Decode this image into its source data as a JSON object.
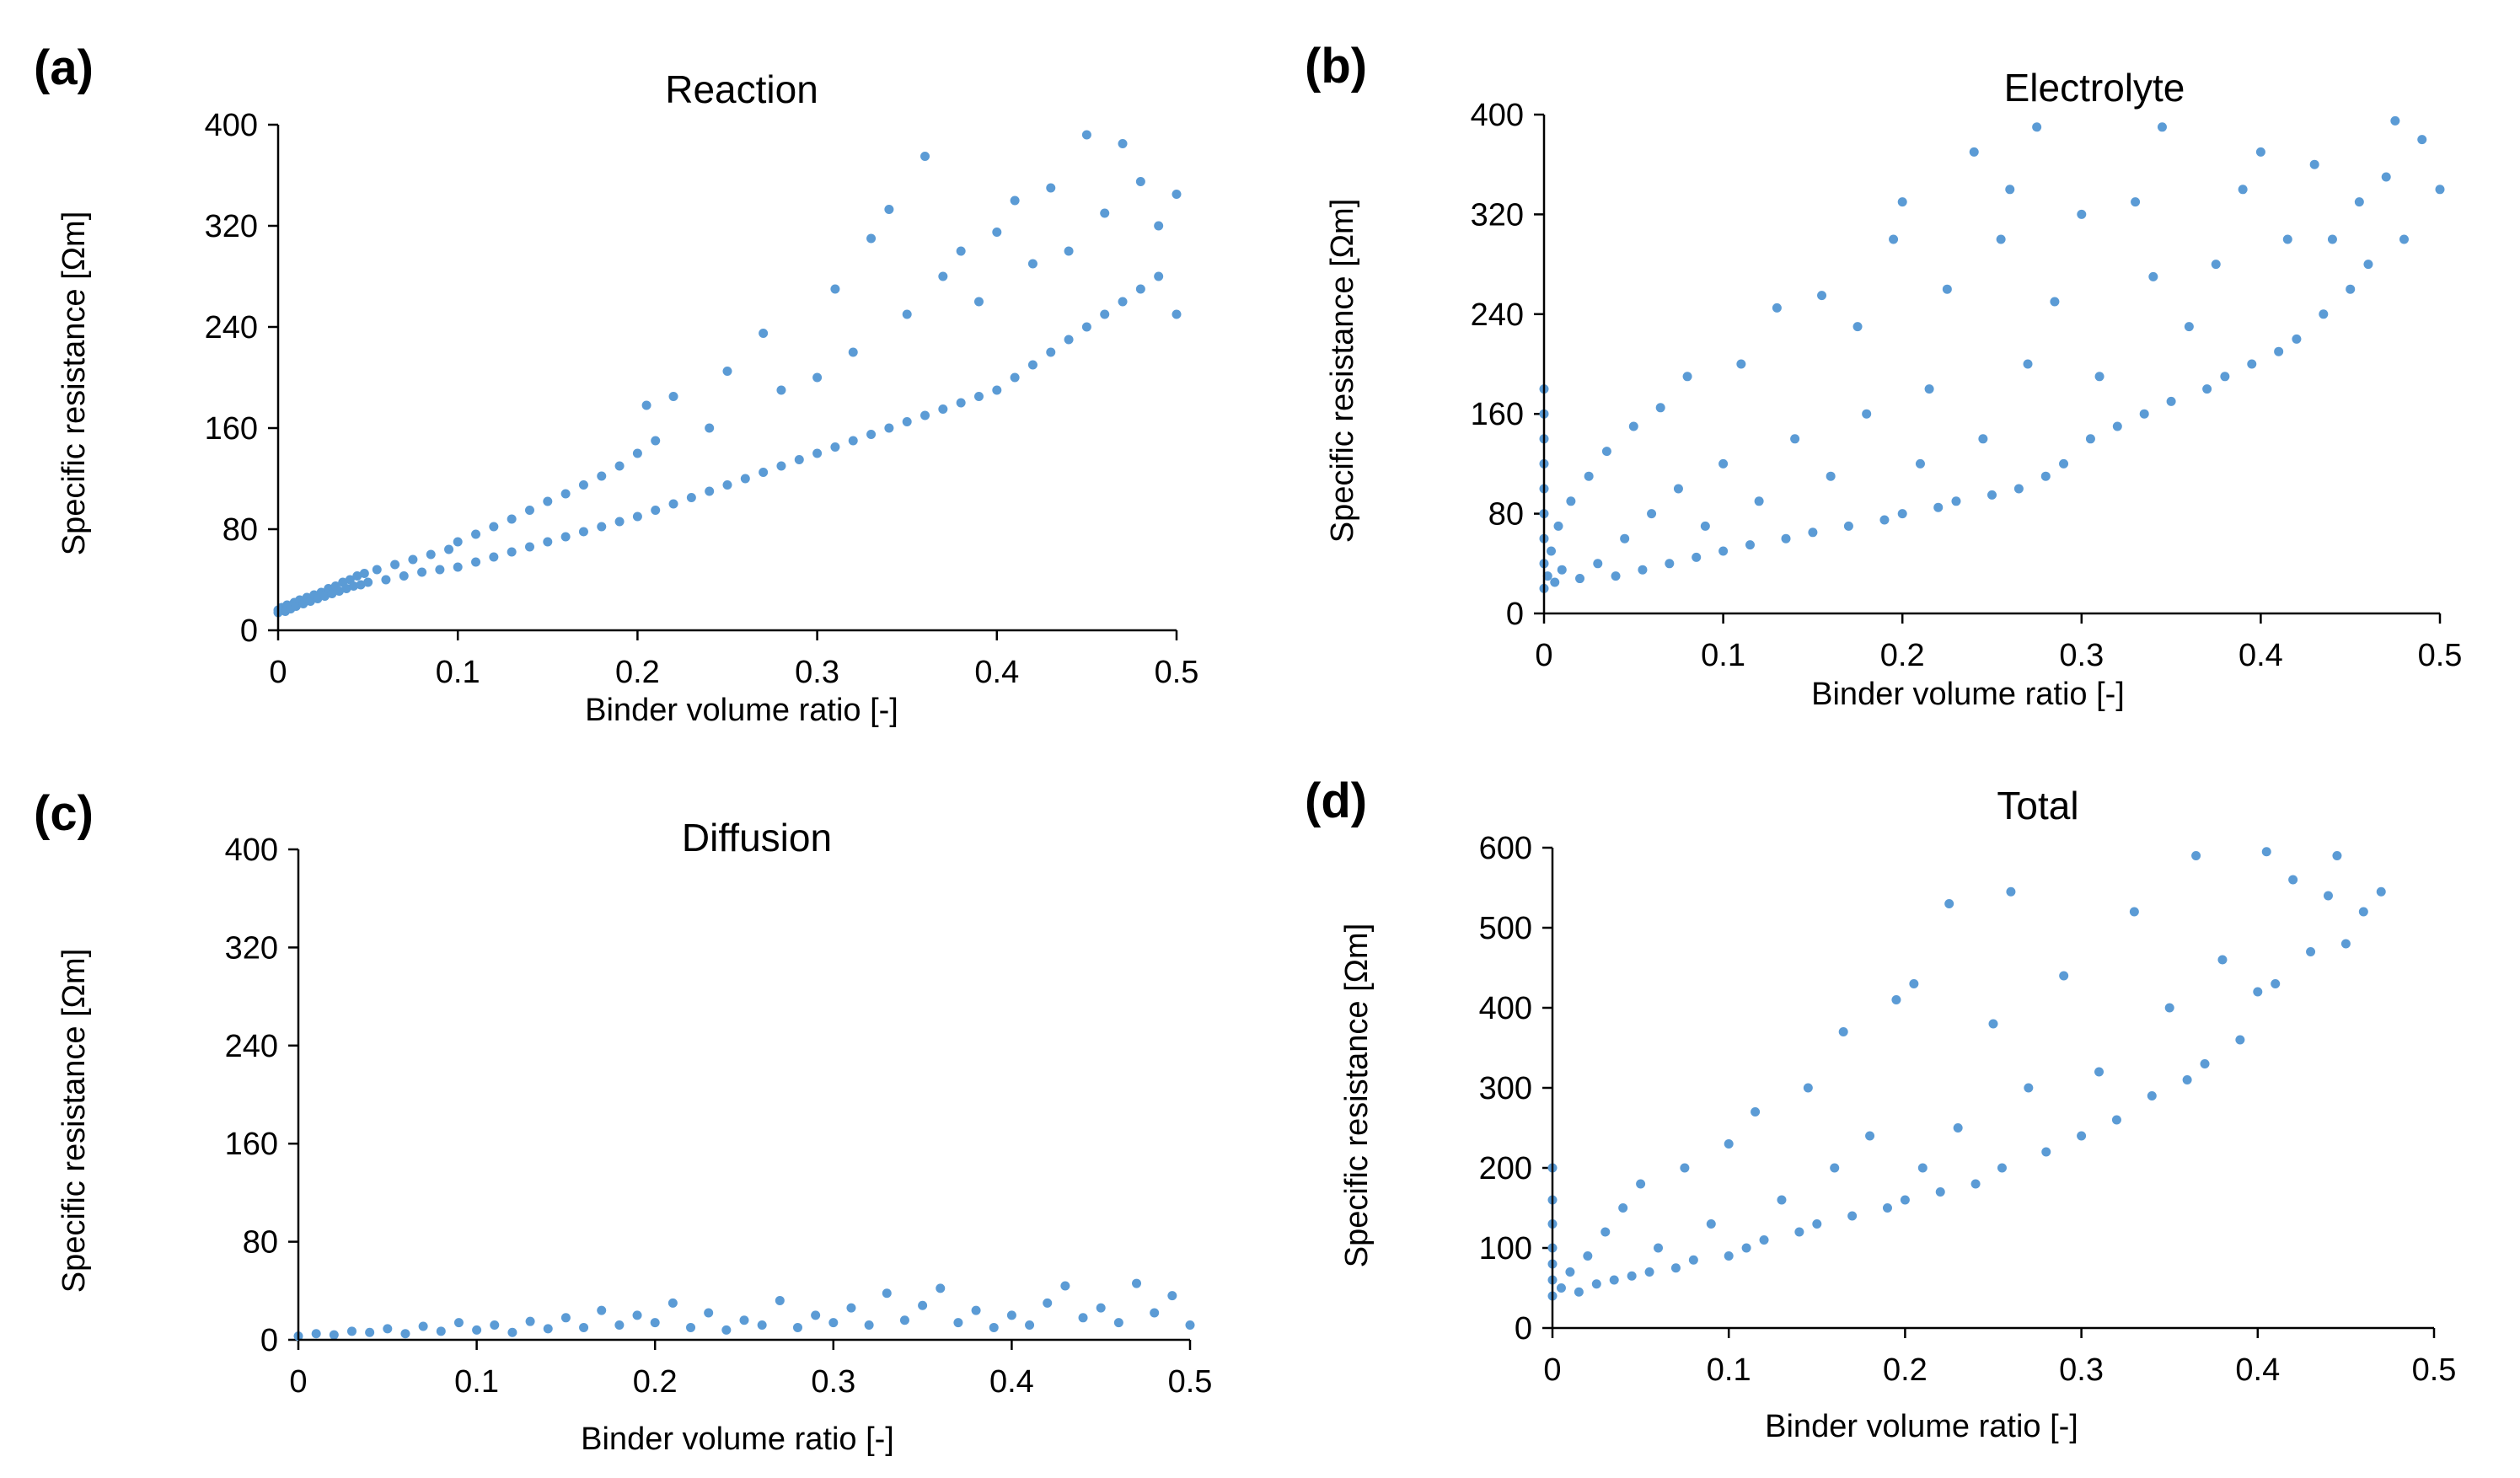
{
  "chart_data": [
    {
      "panel": "(a)",
      "type": "scatter",
      "title": "Reaction",
      "xlabel": "Binder volume ratio [-]",
      "ylabel": "Specific resistance [Ωm]",
      "xlim": [
        0,
        0.5
      ],
      "ylim": [
        0,
        400
      ],
      "xticks": [
        "0",
        "0.1",
        "0.2",
        "0.3",
        "0.4",
        "0.5"
      ],
      "yticks": [
        "0",
        "80",
        "160",
        "240",
        "320",
        "400"
      ],
      "color": "#5b9bd5",
      "points": [
        [
          0.0,
          14
        ],
        [
          0.0,
          16
        ],
        [
          0.002,
          18
        ],
        [
          0.004,
          15
        ],
        [
          0.005,
          20
        ],
        [
          0.007,
          17
        ],
        [
          0.009,
          22
        ],
        [
          0.01,
          19
        ],
        [
          0.012,
          24
        ],
        [
          0.014,
          21
        ],
        [
          0.016,
          26
        ],
        [
          0.018,
          23
        ],
        [
          0.02,
          28
        ],
        [
          0.022,
          25
        ],
        [
          0.024,
          30
        ],
        [
          0.026,
          27
        ],
        [
          0.028,
          33
        ],
        [
          0.03,
          29
        ],
        [
          0.032,
          35
        ],
        [
          0.034,
          31
        ],
        [
          0.036,
          38
        ],
        [
          0.038,
          33
        ],
        [
          0.04,
          40
        ],
        [
          0.042,
          35
        ],
        [
          0.044,
          43
        ],
        [
          0.046,
          36
        ],
        [
          0.048,
          45
        ],
        [
          0.05,
          38
        ],
        [
          0.055,
          48
        ],
        [
          0.06,
          40
        ],
        [
          0.065,
          52
        ],
        [
          0.07,
          43
        ],
        [
          0.075,
          56
        ],
        [
          0.08,
          46
        ],
        [
          0.085,
          60
        ],
        [
          0.09,
          48
        ],
        [
          0.095,
          64
        ],
        [
          0.1,
          50
        ],
        [
          0.1,
          70
        ],
        [
          0.11,
          54
        ],
        [
          0.11,
          76
        ],
        [
          0.12,
          58
        ],
        [
          0.12,
          82
        ],
        [
          0.13,
          62
        ],
        [
          0.13,
          88
        ],
        [
          0.14,
          66
        ],
        [
          0.14,
          95
        ],
        [
          0.15,
          70
        ],
        [
          0.15,
          102
        ],
        [
          0.16,
          74
        ],
        [
          0.16,
          108
        ],
        [
          0.17,
          78
        ],
        [
          0.17,
          115
        ],
        [
          0.18,
          82
        ],
        [
          0.18,
          122
        ],
        [
          0.19,
          86
        ],
        [
          0.19,
          130
        ],
        [
          0.2,
          90
        ],
        [
          0.2,
          140
        ],
        [
          0.205,
          178
        ],
        [
          0.21,
          95
        ],
        [
          0.21,
          150
        ],
        [
          0.22,
          100
        ],
        [
          0.22,
          185
        ],
        [
          0.23,
          105
        ],
        [
          0.24,
          110
        ],
        [
          0.24,
          160
        ],
        [
          0.25,
          115
        ],
        [
          0.25,
          205
        ],
        [
          0.26,
          120
        ],
        [
          0.27,
          125
        ],
        [
          0.27,
          235
        ],
        [
          0.28,
          130
        ],
        [
          0.28,
          190
        ],
        [
          0.29,
          135
        ],
        [
          0.3,
          140
        ],
        [
          0.3,
          200
        ],
        [
          0.31,
          145
        ],
        [
          0.31,
          270
        ],
        [
          0.32,
          150
        ],
        [
          0.32,
          220
        ],
        [
          0.33,
          155
        ],
        [
          0.33,
          310
        ],
        [
          0.34,
          160
        ],
        [
          0.34,
          333
        ],
        [
          0.35,
          165
        ],
        [
          0.35,
          250
        ],
        [
          0.36,
          170
        ],
        [
          0.36,
          375
        ],
        [
          0.37,
          175
        ],
        [
          0.37,
          280
        ],
        [
          0.38,
          180
        ],
        [
          0.38,
          300
        ],
        [
          0.39,
          185
        ],
        [
          0.39,
          260
        ],
        [
          0.4,
          190
        ],
        [
          0.4,
          315
        ],
        [
          0.41,
          200
        ],
        [
          0.41,
          340
        ],
        [
          0.42,
          210
        ],
        [
          0.42,
          290
        ],
        [
          0.43,
          220
        ],
        [
          0.43,
          350
        ],
        [
          0.44,
          230
        ],
        [
          0.44,
          300
        ],
        [
          0.45,
          240
        ],
        [
          0.45,
          392
        ],
        [
          0.46,
          250
        ],
        [
          0.46,
          330
        ],
        [
          0.47,
          260
        ],
        [
          0.47,
          385
        ],
        [
          0.48,
          270
        ],
        [
          0.48,
          355
        ],
        [
          0.49,
          280
        ],
        [
          0.49,
          320
        ],
        [
          0.5,
          250
        ],
        [
          0.5,
          345
        ]
      ]
    },
    {
      "panel": "(b)",
      "type": "scatter",
      "title": "Electrolyte",
      "xlabel": "Binder volume ratio [-]",
      "ylabel": "Specific resistance [Ωm]",
      "xlim": [
        0,
        0.5
      ],
      "ylim": [
        0,
        400
      ],
      "xticks": [
        "0",
        "0.1",
        "0.2",
        "0.3",
        "0.4",
        "0.5"
      ],
      "yticks": [
        "0",
        "80",
        "160",
        "240",
        "320",
        "400"
      ],
      "color": "#5b9bd5",
      "points": [
        [
          0.0,
          20
        ],
        [
          0.0,
          40
        ],
        [
          0.0,
          60
        ],
        [
          0.0,
          80
        ],
        [
          0.0,
          100
        ],
        [
          0.0,
          120
        ],
        [
          0.0,
          140
        ],
        [
          0.0,
          160
        ],
        [
          0.0,
          180
        ],
        [
          0.002,
          30
        ],
        [
          0.004,
          50
        ],
        [
          0.006,
          25
        ],
        [
          0.008,
          70
        ],
        [
          0.01,
          35
        ],
        [
          0.015,
          90
        ],
        [
          0.02,
          28
        ],
        [
          0.025,
          110
        ],
        [
          0.03,
          40
        ],
        [
          0.035,
          130
        ],
        [
          0.04,
          30
        ],
        [
          0.045,
          60
        ],
        [
          0.05,
          150
        ],
        [
          0.055,
          35
        ],
        [
          0.06,
          80
        ],
        [
          0.065,
          165
        ],
        [
          0.07,
          40
        ],
        [
          0.075,
          100
        ],
        [
          0.08,
          190
        ],
        [
          0.085,
          45
        ],
        [
          0.09,
          70
        ],
        [
          0.1,
          50
        ],
        [
          0.1,
          120
        ],
        [
          0.11,
          200
        ],
        [
          0.115,
          55
        ],
        [
          0.12,
          90
        ],
        [
          0.13,
          245
        ],
        [
          0.135,
          60
        ],
        [
          0.14,
          140
        ],
        [
          0.15,
          65
        ],
        [
          0.155,
          255
        ],
        [
          0.16,
          110
        ],
        [
          0.17,
          70
        ],
        [
          0.175,
          230
        ],
        [
          0.18,
          160
        ],
        [
          0.19,
          75
        ],
        [
          0.195,
          300
        ],
        [
          0.2,
          80
        ],
        [
          0.2,
          330
        ],
        [
          0.21,
          120
        ],
        [
          0.215,
          180
        ],
        [
          0.22,
          85
        ],
        [
          0.225,
          260
        ],
        [
          0.23,
          90
        ],
        [
          0.24,
          370
        ],
        [
          0.245,
          140
        ],
        [
          0.25,
          95
        ],
        [
          0.255,
          300
        ],
        [
          0.26,
          340
        ],
        [
          0.265,
          100
        ],
        [
          0.27,
          200
        ],
        [
          0.275,
          390
        ],
        [
          0.28,
          110
        ],
        [
          0.285,
          250
        ],
        [
          0.29,
          120
        ],
        [
          0.3,
          320
        ],
        [
          0.305,
          140
        ],
        [
          0.31,
          190
        ],
        [
          0.32,
          150
        ],
        [
          0.33,
          330
        ],
        [
          0.335,
          160
        ],
        [
          0.34,
          270
        ],
        [
          0.345,
          390
        ],
        [
          0.35,
          170
        ],
        [
          0.36,
          230
        ],
        [
          0.37,
          180
        ],
        [
          0.375,
          280
        ],
        [
          0.38,
          190
        ],
        [
          0.39,
          340
        ],
        [
          0.395,
          200
        ],
        [
          0.4,
          370
        ],
        [
          0.41,
          210
        ],
        [
          0.415,
          300
        ],
        [
          0.42,
          220
        ],
        [
          0.43,
          360
        ],
        [
          0.435,
          240
        ],
        [
          0.44,
          300
        ],
        [
          0.45,
          260
        ],
        [
          0.455,
          330
        ],
        [
          0.46,
          280
        ],
        [
          0.47,
          350
        ],
        [
          0.475,
          395
        ],
        [
          0.48,
          300
        ],
        [
          0.49,
          380
        ],
        [
          0.5,
          340
        ]
      ]
    },
    {
      "panel": "(c)",
      "type": "scatter",
      "title": "Diffusion",
      "xlabel": "Binder volume ratio [-]",
      "ylabel": "Specific resistance [Ωm]",
      "xlim": [
        0,
        0.5
      ],
      "ylim": [
        0,
        400
      ],
      "xticks": [
        "0",
        "0.1",
        "0.2",
        "0.3",
        "0.4",
        "0.5"
      ],
      "yticks": [
        "0",
        "80",
        "160",
        "240",
        "320",
        "400"
      ],
      "color": "#5b9bd5",
      "points": [
        [
          0.0,
          3
        ],
        [
          0.01,
          5
        ],
        [
          0.02,
          4
        ],
        [
          0.03,
          7
        ],
        [
          0.04,
          6
        ],
        [
          0.05,
          9
        ],
        [
          0.06,
          5
        ],
        [
          0.07,
          11
        ],
        [
          0.08,
          7
        ],
        [
          0.09,
          14
        ],
        [
          0.1,
          8
        ],
        [
          0.11,
          12
        ],
        [
          0.12,
          6
        ],
        [
          0.13,
          15
        ],
        [
          0.14,
          9
        ],
        [
          0.15,
          18
        ],
        [
          0.16,
          10
        ],
        [
          0.17,
          24
        ],
        [
          0.18,
          12
        ],
        [
          0.19,
          20
        ],
        [
          0.2,
          14
        ],
        [
          0.21,
          30
        ],
        [
          0.22,
          10
        ],
        [
          0.23,
          22
        ],
        [
          0.24,
          8
        ],
        [
          0.25,
          16
        ],
        [
          0.26,
          12
        ],
        [
          0.27,
          32
        ],
        [
          0.28,
          10
        ],
        [
          0.29,
          20
        ],
        [
          0.3,
          14
        ],
        [
          0.31,
          26
        ],
        [
          0.32,
          12
        ],
        [
          0.33,
          38
        ],
        [
          0.34,
          16
        ],
        [
          0.35,
          28
        ],
        [
          0.36,
          42
        ],
        [
          0.37,
          14
        ],
        [
          0.38,
          24
        ],
        [
          0.39,
          10
        ],
        [
          0.4,
          20
        ],
        [
          0.41,
          12
        ],
        [
          0.42,
          30
        ],
        [
          0.43,
          44
        ],
        [
          0.44,
          18
        ],
        [
          0.45,
          26
        ],
        [
          0.46,
          14
        ],
        [
          0.47,
          46
        ],
        [
          0.48,
          22
        ],
        [
          0.49,
          36
        ],
        [
          0.5,
          12
        ]
      ]
    },
    {
      "panel": "(d)",
      "type": "scatter",
      "title": "Total",
      "xlabel": "Binder volume ratio [-]",
      "ylabel": "Specific resistance [Ωm]",
      "xlim": [
        0,
        0.5
      ],
      "ylim": [
        0,
        600
      ],
      "xticks": [
        "0",
        "0.1",
        "0.2",
        "0.3",
        "0.4",
        "0.5"
      ],
      "yticks": [
        "0",
        "100",
        "200",
        "300",
        "400",
        "500",
        "600"
      ],
      "color": "#5b9bd5",
      "points": [
        [
          0.0,
          40
        ],
        [
          0.0,
          60
        ],
        [
          0.0,
          80
        ],
        [
          0.0,
          100
        ],
        [
          0.0,
          130
        ],
        [
          0.0,
          160
        ],
        [
          0.0,
          200
        ],
        [
          0.005,
          50
        ],
        [
          0.01,
          70
        ],
        [
          0.015,
          45
        ],
        [
          0.02,
          90
        ],
        [
          0.025,
          55
        ],
        [
          0.03,
          120
        ],
        [
          0.035,
          60
        ],
        [
          0.04,
          150
        ],
        [
          0.045,
          65
        ],
        [
          0.05,
          180
        ],
        [
          0.055,
          70
        ],
        [
          0.06,
          100
        ],
        [
          0.07,
          75
        ],
        [
          0.075,
          200
        ],
        [
          0.08,
          85
        ],
        [
          0.09,
          130
        ],
        [
          0.1,
          90
        ],
        [
          0.1,
          230
        ],
        [
          0.11,
          100
        ],
        [
          0.115,
          270
        ],
        [
          0.12,
          110
        ],
        [
          0.13,
          160
        ],
        [
          0.14,
          120
        ],
        [
          0.145,
          300
        ],
        [
          0.15,
          130
        ],
        [
          0.16,
          200
        ],
        [
          0.165,
          370
        ],
        [
          0.17,
          140
        ],
        [
          0.18,
          240
        ],
        [
          0.19,
          150
        ],
        [
          0.195,
          410
        ],
        [
          0.2,
          160
        ],
        [
          0.205,
          430
        ],
        [
          0.21,
          200
        ],
        [
          0.22,
          170
        ],
        [
          0.225,
          530
        ],
        [
          0.23,
          250
        ],
        [
          0.24,
          180
        ],
        [
          0.25,
          380
        ],
        [
          0.255,
          200
        ],
        [
          0.26,
          545
        ],
        [
          0.27,
          300
        ],
        [
          0.28,
          220
        ],
        [
          0.29,
          440
        ],
        [
          0.3,
          240
        ],
        [
          0.31,
          320
        ],
        [
          0.32,
          260
        ],
        [
          0.33,
          520
        ],
        [
          0.34,
          290
        ],
        [
          0.35,
          400
        ],
        [
          0.36,
          310
        ],
        [
          0.365,
          590
        ],
        [
          0.37,
          330
        ],
        [
          0.38,
          460
        ],
        [
          0.39,
          360
        ],
        [
          0.4,
          420
        ],
        [
          0.405,
          595
        ],
        [
          0.41,
          430
        ],
        [
          0.42,
          560
        ],
        [
          0.43,
          470
        ],
        [
          0.44,
          540
        ],
        [
          0.445,
          590
        ],
        [
          0.45,
          480
        ],
        [
          0.46,
          520
        ],
        [
          0.47,
          545
        ]
      ]
    }
  ]
}
